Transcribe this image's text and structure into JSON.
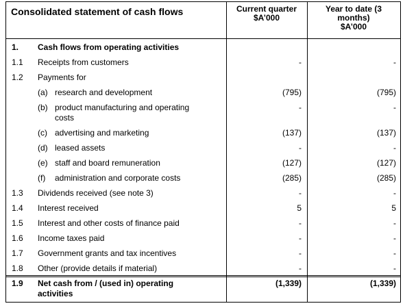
{
  "header": {
    "title": "Consolidated statement of cash flows",
    "columns": [
      [
        "Current quarter",
        "$A’000"
      ],
      [
        "Year to date (3",
        "months)",
        "$A’000"
      ]
    ]
  },
  "rows": [
    {
      "num": "1.",
      "label": [
        "Cash flows from operating activities"
      ],
      "bold": true
    },
    {
      "num": "1.1",
      "label": [
        "Receipts from customers"
      ],
      "current": "-",
      "ytd": "-"
    },
    {
      "num": "1.2",
      "label": [
        "Payments for"
      ]
    },
    {
      "letter": "(a)",
      "label": [
        "research and development"
      ],
      "current": "(795)",
      "ytd": "(795)"
    },
    {
      "letter": "(b)",
      "label": [
        "product manufacturing and operating",
        "costs"
      ],
      "current": "-",
      "ytd": "-"
    },
    {
      "letter": "(c)",
      "label": [
        "advertising and marketing"
      ],
      "current": "(137)",
      "ytd": "(137)"
    },
    {
      "letter": "(d)",
      "label": [
        "leased assets"
      ],
      "current": "-",
      "ytd": "-"
    },
    {
      "letter": "(e)",
      "label": [
        "staff and board remuneration"
      ],
      "current": "(127)",
      "ytd": "(127)"
    },
    {
      "letter": "(f)",
      "label": [
        "administration and corporate costs"
      ],
      "current": "(285)",
      "ytd": "(285)"
    },
    {
      "num": "1.3",
      "label": [
        "Dividends received (see note 3)"
      ],
      "current": "-",
      "ytd": "-"
    },
    {
      "num": "1.4",
      "label": [
        "Interest received"
      ],
      "current": "5",
      "ytd": "5"
    },
    {
      "num": "1.5",
      "label": [
        "Interest and other costs of finance paid"
      ],
      "current": "-",
      "ytd": "-"
    },
    {
      "num": "1.6",
      "label": [
        "Income taxes paid"
      ],
      "current": "-",
      "ytd": "-"
    },
    {
      "num": "1.7",
      "label": [
        "Government grants and tax incentives"
      ],
      "current": "-",
      "ytd": "-"
    },
    {
      "num": "1.8",
      "label": [
        "Other (provide details if material)"
      ],
      "current": "-",
      "ytd": "-"
    },
    {
      "num": "1.9",
      "label": [
        "Net cash from / (used in) operating",
        "activities"
      ],
      "current": "(1,339)",
      "ytd": "(1,339)",
      "bold": true
    }
  ]
}
